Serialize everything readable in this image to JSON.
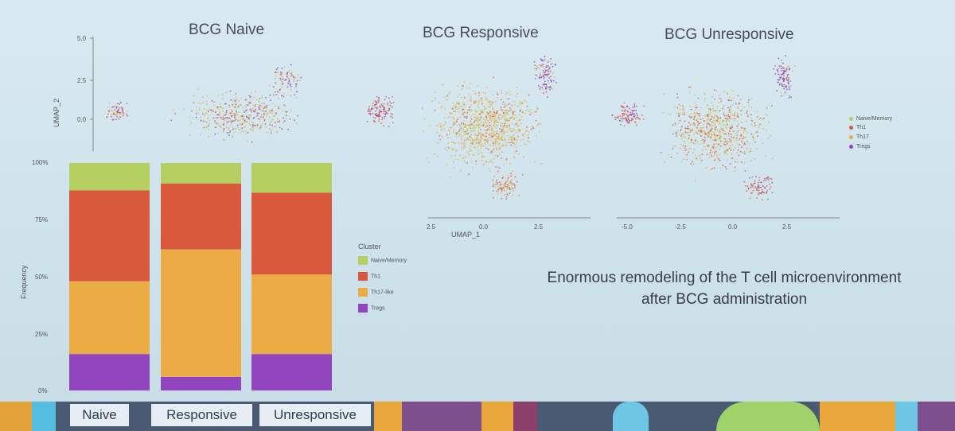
{
  "titles": {
    "naive": "BCG Naive",
    "responsive": "BCG Responsive",
    "unresponsive": "BCG Unresponsive"
  },
  "caption": {
    "line1": "Enormous remodeling of the T cell microenvironment",
    "line2": "after BCG administration"
  },
  "colors": {
    "naive_memory": "#b5d061",
    "th1": "#d9593d",
    "th17": "#ebac45",
    "tregs": "#9146c0"
  },
  "chart_data": [
    {
      "type": "bar",
      "subtype": "stacked-100",
      "categories": [
        "Naive",
        "Responsive",
        "Unresponsive"
      ],
      "ylabel": "Frequency",
      "ytick_labels": [
        "0%",
        "25%",
        "50%",
        "75%",
        "100%"
      ],
      "ylim": [
        0,
        100
      ],
      "legend_title": "Cluster",
      "legend_position": "right",
      "series": [
        {
          "name": "Tregs",
          "values": [
            16,
            6,
            16
          ]
        },
        {
          "name": "Th17-like",
          "values": [
            32,
            56,
            35
          ]
        },
        {
          "name": "Th1",
          "values": [
            40,
            29,
            36
          ]
        },
        {
          "name": "Naive/Memory",
          "values": [
            12,
            9,
            13
          ]
        }
      ]
    },
    {
      "type": "scatter",
      "title": "BCG Naive",
      "ylabel": "UMAP_2",
      "ytick_labels": [
        "0.0",
        "2.5",
        "5.0"
      ]
    },
    {
      "type": "scatter",
      "title": "BCG Responsive",
      "xlabel": "UMAP_1",
      "xtick_labels": [
        "2.5",
        "0.0",
        "2.5"
      ]
    },
    {
      "type": "scatter",
      "title": "BCG Unresponsive",
      "xtick_labels": [
        "-5.0",
        "-2.5",
        "0.0",
        "2.5"
      ],
      "legend": [
        "Naive/Memory",
        "Th1",
        "Th17",
        "Tregs"
      ],
      "legend_position": "right"
    }
  ]
}
